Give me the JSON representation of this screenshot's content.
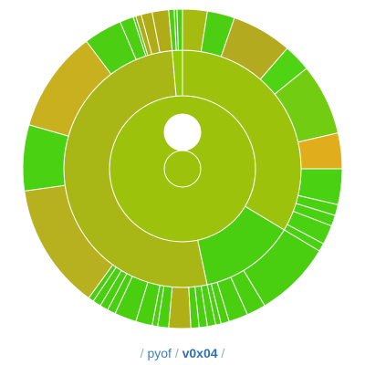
{
  "breadcrumb": {
    "sep_left": "/",
    "parent": "pyof",
    "sep_mid": "/",
    "current": "v0x04",
    "sep_right": "/"
  },
  "colors": {
    "background": "#ffffff",
    "link": "#3a80c4",
    "link_current": "#2f6fb5",
    "separator": "#9aa9b8",
    "segment_stroke": "#ffffff"
  },
  "sunburst": {
    "rings": [
      {
        "name": "ring-1",
        "segments": [
          {
            "start": 0,
            "end": 360,
            "color": "#9cc20c"
          }
        ]
      },
      {
        "name": "ring-2",
        "segments": [
          {
            "start": 0,
            "end": 121,
            "color": "#9cc20c"
          },
          {
            "start": 121,
            "end": 168,
            "color": "#49cf10"
          },
          {
            "start": 168,
            "end": 355,
            "color": "#a8b715"
          },
          {
            "start": 355,
            "end": 360,
            "color": "#93cb0b"
          }
        ]
      },
      {
        "name": "ring-3",
        "segments": [
          {
            "start": 0,
            "end": 9,
            "color": "#a6bb10"
          },
          {
            "start": 9,
            "end": 19,
            "color": "#4ccf12"
          },
          {
            "start": 19,
            "end": 41,
            "color": "#b4aa20"
          },
          {
            "start": 41,
            "end": 51,
            "color": "#4fd414"
          },
          {
            "start": 51,
            "end": 77,
            "color": "#72cc12"
          },
          {
            "start": 77,
            "end": 90,
            "color": "#e0ae1c"
          },
          {
            "start": 90,
            "end": 103,
            "color": "#4ad112"
          },
          {
            "start": 103,
            "end": 107,
            "color": "#4ad112"
          },
          {
            "start": 107,
            "end": 111,
            "color": "#4ad112"
          },
          {
            "start": 111,
            "end": 118,
            "color": "#4ad112"
          },
          {
            "start": 118,
            "end": 121,
            "color": "#4ad112"
          },
          {
            "start": 121,
            "end": 149,
            "color": "#49cf10"
          },
          {
            "start": 149,
            "end": 156,
            "color": "#49cf10"
          },
          {
            "start": 156,
            "end": 163,
            "color": "#49cf10"
          },
          {
            "start": 163,
            "end": 166,
            "color": "#49cf10"
          },
          {
            "start": 166,
            "end": 168,
            "color": "#49cf10"
          },
          {
            "start": 168,
            "end": 171,
            "color": "#49cf10"
          },
          {
            "start": 171,
            "end": 174,
            "color": "#49cf10"
          },
          {
            "start": 174,
            "end": 177,
            "color": "#49cf10"
          },
          {
            "start": 177,
            "end": 185,
            "color": "#b0b016"
          },
          {
            "start": 185,
            "end": 189,
            "color": "#49cf10"
          },
          {
            "start": 189,
            "end": 191,
            "color": "#49cf10"
          },
          {
            "start": 191,
            "end": 197,
            "color": "#49cf10"
          },
          {
            "start": 197,
            "end": 205,
            "color": "#49cf10"
          },
          {
            "start": 205,
            "end": 208,
            "color": "#49cf10"
          },
          {
            "start": 208,
            "end": 211,
            "color": "#49cf10"
          },
          {
            "start": 211,
            "end": 214,
            "color": "#49cf10"
          },
          {
            "start": 214,
            "end": 216,
            "color": "#49cf10"
          },
          {
            "start": 216,
            "end": 262,
            "color": "#b8b11f"
          },
          {
            "start": 262,
            "end": 286,
            "color": "#4ad112"
          },
          {
            "start": 286,
            "end": 323,
            "color": "#c8b01f"
          },
          {
            "start": 323,
            "end": 337,
            "color": "#4ccf12"
          },
          {
            "start": 337,
            "end": 342,
            "color": "#4ccf12"
          },
          {
            "start": 342,
            "end": 343,
            "color": "#4ccf12"
          },
          {
            "start": 343,
            "end": 345,
            "color": "#b0ac17"
          },
          {
            "start": 345,
            "end": 349,
            "color": "#b0ac17"
          },
          {
            "start": 349,
            "end": 355,
            "color": "#b0ac17"
          },
          {
            "start": 355,
            "end": 357,
            "color": "#4ccf12"
          },
          {
            "start": 357,
            "end": 358,
            "color": "#4ccf12"
          },
          {
            "start": 358,
            "end": 360,
            "color": "#4ccf12"
          }
        ]
      }
    ]
  }
}
